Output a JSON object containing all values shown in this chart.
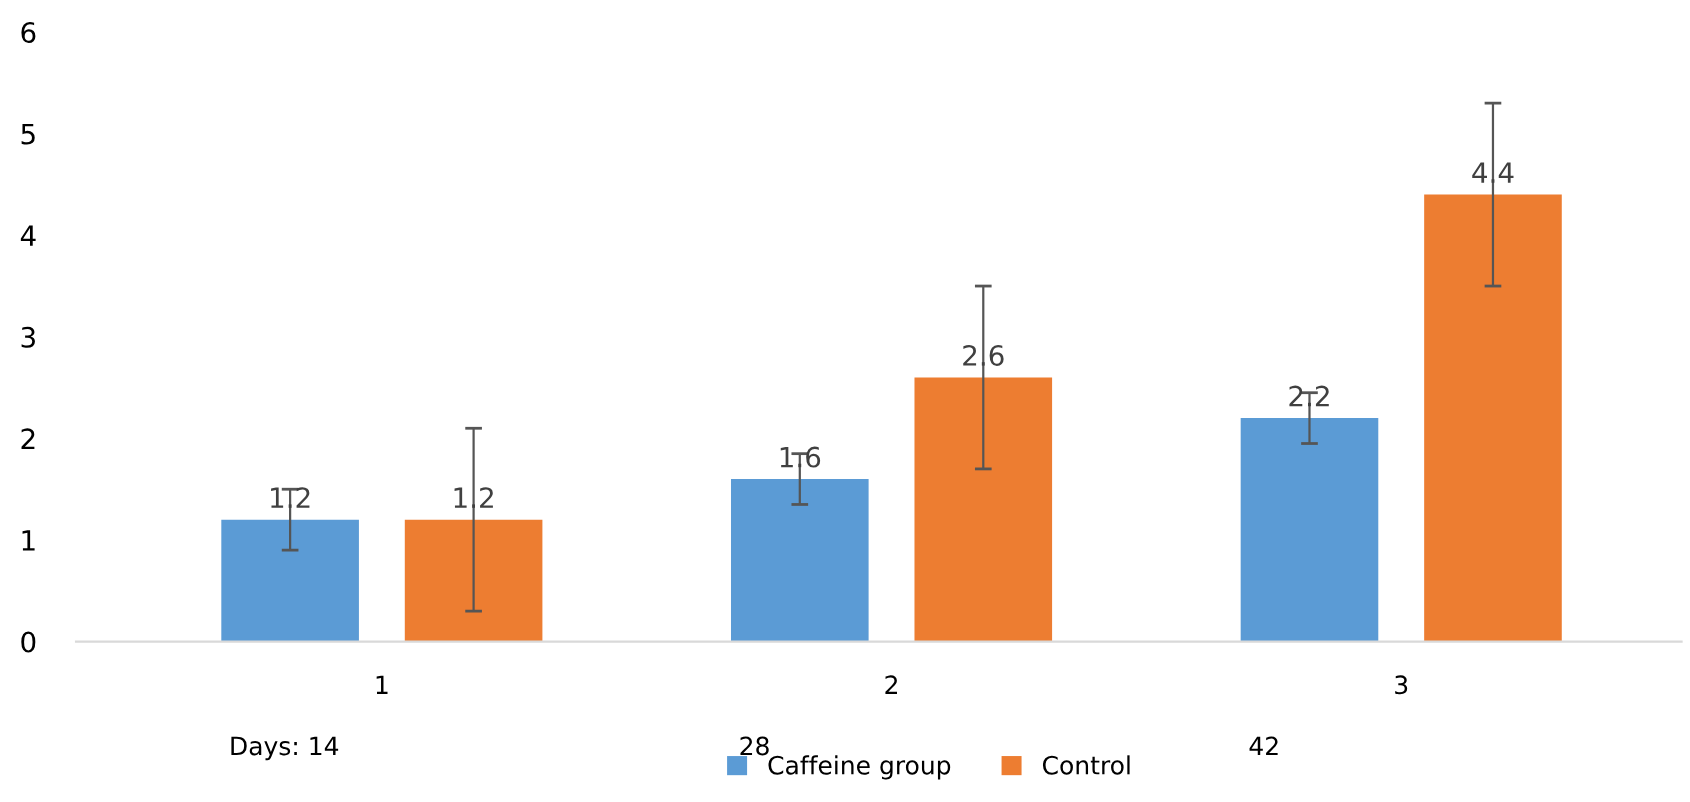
{
  "chart_data": {
    "type": "bar",
    "categories": [
      "1",
      "2",
      "3"
    ],
    "series": [
      {
        "name": "Caffeine group",
        "color": "#5b9bd5",
        "values": [
          1.2,
          1.6,
          2.2
        ],
        "errors": [
          0.3,
          0.25,
          0.25
        ]
      },
      {
        "name": "Control",
        "color": "#ed7d31",
        "values": [
          1.2,
          2.6,
          4.4
        ],
        "errors": [
          0.9,
          0.9,
          0.9
        ]
      }
    ],
    "ylim": [
      0,
      6
    ],
    "yticks": [
      0,
      1,
      2,
      3,
      4,
      5,
      6
    ],
    "annotations": [
      "Days: 14",
      "28",
      "42"
    ],
    "data_labels": true,
    "grid": false,
    "legend": "bottom"
  }
}
